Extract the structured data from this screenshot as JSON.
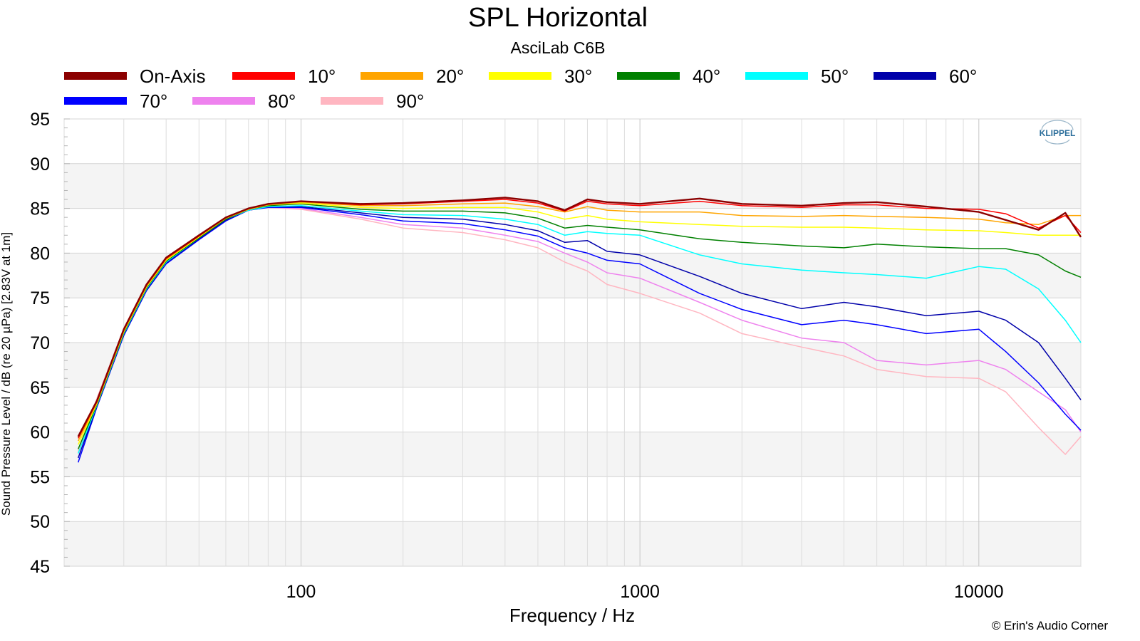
{
  "chart_data": {
    "type": "line",
    "title": "SPL Horizontal",
    "subtitle": "AsciLab C6B",
    "xlabel": "Frequency / Hz",
    "ylabel": "Sound Pressure Level / dB (re 20 µPa)  [2.83V at 1m]",
    "x_scale": "log",
    "xlim": [
      20,
      20000
    ],
    "ylim": [
      45,
      95
    ],
    "x_ticks": [
      "100",
      "1000",
      "10000"
    ],
    "y_ticks": [
      "95",
      "90",
      "85",
      "80",
      "75",
      "70",
      "65",
      "60",
      "55",
      "50",
      "45"
    ],
    "grid": true,
    "legend_position": "top",
    "brand": "KLIPPEL",
    "credit": "© Erin's Audio Corner",
    "x": [
      22,
      25,
      30,
      35,
      40,
      50,
      60,
      70,
      80,
      100,
      150,
      200,
      300,
      400,
      500,
      600,
      700,
      800,
      1000,
      1500,
      2000,
      3000,
      4000,
      5000,
      7000,
      10000,
      12000,
      15000,
      18000,
      20000
    ],
    "series": [
      {
        "name": "On-Axis",
        "color": "#8b0000",
        "values": [
          59.5,
          63.5,
          71.5,
          76.5,
          79.5,
          82.0,
          84.0,
          85.0,
          85.5,
          85.8,
          85.5,
          85.6,
          85.9,
          86.2,
          85.8,
          84.8,
          86.0,
          85.7,
          85.5,
          86.1,
          85.5,
          85.3,
          85.6,
          85.7,
          85.2,
          84.6,
          83.7,
          82.6,
          84.5,
          81.8
        ]
      },
      {
        "name": "10°",
        "color": "#ff0000",
        "values": [
          59.3,
          63.4,
          71.4,
          76.4,
          79.4,
          81.9,
          84.0,
          85.0,
          85.5,
          85.8,
          85.4,
          85.5,
          85.8,
          86.0,
          85.6,
          84.7,
          85.8,
          85.5,
          85.3,
          85.8,
          85.3,
          85.1,
          85.4,
          85.4,
          85.0,
          84.9,
          84.4,
          82.8,
          84.2,
          82.3
        ]
      },
      {
        "name": "20°",
        "color": "#ffa500",
        "values": [
          59.0,
          63.3,
          71.3,
          76.3,
          79.3,
          81.9,
          83.9,
          84.9,
          85.4,
          85.7,
          85.3,
          85.3,
          85.5,
          85.6,
          85.2,
          84.6,
          85.2,
          84.8,
          84.6,
          84.6,
          84.2,
          84.1,
          84.2,
          84.1,
          84.0,
          83.8,
          83.4,
          83.2,
          84.2,
          84.2
        ]
      },
      {
        "name": "30°",
        "color": "#ffff00",
        "values": [
          58.6,
          63.2,
          71.2,
          76.2,
          79.2,
          81.8,
          83.9,
          84.9,
          85.4,
          85.6,
          85.1,
          85.0,
          85.1,
          85.1,
          84.6,
          83.8,
          84.2,
          83.8,
          83.5,
          83.2,
          83.0,
          82.9,
          82.9,
          82.8,
          82.6,
          82.5,
          82.3,
          82.0,
          82.0,
          82.0
        ]
      },
      {
        "name": "40°",
        "color": "#008000",
        "values": [
          58.1,
          63.1,
          71.1,
          76.1,
          79.1,
          81.7,
          83.8,
          84.9,
          85.3,
          85.5,
          84.9,
          84.7,
          84.7,
          84.5,
          83.9,
          82.8,
          83.1,
          82.9,
          82.6,
          81.6,
          81.2,
          80.8,
          80.6,
          81.0,
          80.7,
          80.5,
          80.5,
          79.8,
          78.0,
          77.3
        ]
      },
      {
        "name": "50°",
        "color": "#00ffff",
        "values": [
          57.6,
          63.0,
          71.0,
          76.0,
          79.0,
          81.7,
          83.8,
          84.8,
          85.2,
          85.3,
          84.7,
          84.3,
          84.2,
          83.8,
          83.2,
          82.0,
          82.4,
          82.2,
          82.0,
          79.8,
          78.8,
          78.1,
          77.8,
          77.6,
          77.2,
          78.5,
          78.2,
          76.0,
          72.5,
          70.0
        ]
      },
      {
        "name": "60°",
        "color": "#0000aa",
        "values": [
          57.1,
          62.9,
          70.9,
          75.9,
          78.9,
          81.6,
          83.7,
          84.8,
          85.2,
          85.2,
          84.5,
          84.0,
          83.8,
          83.2,
          82.5,
          81.2,
          81.4,
          80.2,
          79.8,
          77.4,
          75.5,
          73.8,
          74.5,
          74.0,
          73.0,
          73.5,
          72.5,
          70.0,
          66.0,
          63.6
        ]
      },
      {
        "name": "70°",
        "color": "#0000ff",
        "values": [
          56.6,
          62.8,
          70.8,
          75.8,
          78.8,
          81.5,
          83.6,
          84.8,
          85.1,
          85.1,
          84.3,
          83.6,
          83.3,
          82.6,
          81.9,
          80.6,
          80.0,
          79.2,
          78.8,
          75.5,
          73.7,
          72.0,
          72.5,
          72.0,
          71.0,
          71.5,
          69.0,
          65.5,
          62.0,
          60.2
        ]
      },
      {
        "name": "80°",
        "color": "#ee82ee",
        "values": [
          57.1,
          63.2,
          71.0,
          76.0,
          78.9,
          81.6,
          83.7,
          84.8,
          85.1,
          85.0,
          84.0,
          83.2,
          82.8,
          82.0,
          81.3,
          80.0,
          79.0,
          77.8,
          77.2,
          74.5,
          72.5,
          70.5,
          70.0,
          68.0,
          67.5,
          68.0,
          67.0,
          64.5,
          62.5,
          60.0
        ]
      },
      {
        "name": "90°",
        "color": "#ffb6c1",
        "values": [
          57.8,
          63.8,
          71.5,
          76.4,
          79.2,
          81.7,
          83.7,
          84.8,
          85.1,
          84.9,
          83.8,
          82.8,
          82.3,
          81.5,
          80.6,
          79.0,
          78.0,
          76.5,
          75.5,
          73.3,
          71.0,
          69.5,
          68.5,
          67.0,
          66.2,
          66.0,
          64.5,
          60.5,
          57.5,
          59.5
        ]
      }
    ]
  }
}
